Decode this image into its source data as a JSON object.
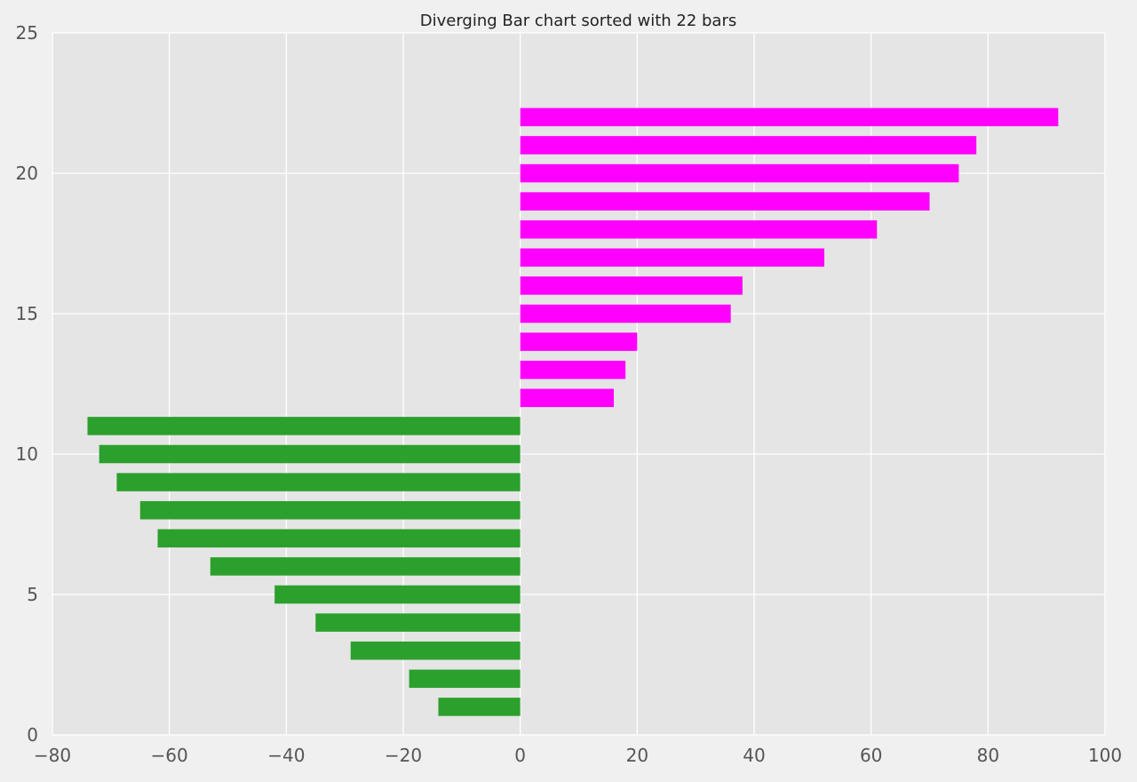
{
  "chart_data": {
    "type": "bar",
    "orientation": "horizontal",
    "title": "Diverging Bar chart sorted with 22 bars",
    "xlabel": "",
    "ylabel": "",
    "xlim": [
      -80,
      100
    ],
    "ylim": [
      0,
      25
    ],
    "x_ticks": [
      -80,
      -60,
      -40,
      -20,
      0,
      20,
      40,
      60,
      80,
      100
    ],
    "x_tick_labels": [
      "−80",
      "−60",
      "−40",
      "−20",
      "0",
      "20",
      "40",
      "60",
      "80",
      "100"
    ],
    "y_ticks": [
      0,
      5,
      10,
      15,
      20,
      25
    ],
    "y_tick_labels": [
      "0",
      "5",
      "10",
      "15",
      "20",
      "25"
    ],
    "grid": true,
    "legend": "none",
    "colors": {
      "negative": "#2ca02c",
      "positive": "#ff00ff",
      "plot_background": "#e5e5e5",
      "figure_background": "#f0f0f0",
      "grid": "#ffffff"
    },
    "y": [
      1,
      2,
      3,
      4,
      5,
      6,
      7,
      8,
      9,
      10,
      11,
      12,
      13,
      14,
      15,
      16,
      17,
      18,
      19,
      20,
      21,
      22
    ],
    "values": [
      -14,
      -19,
      -29,
      -35,
      -42,
      -53,
      -62,
      -65,
      -69,
      -72,
      -74,
      16,
      18,
      20,
      36,
      38,
      52,
      61,
      70,
      75,
      78,
      92
    ]
  }
}
